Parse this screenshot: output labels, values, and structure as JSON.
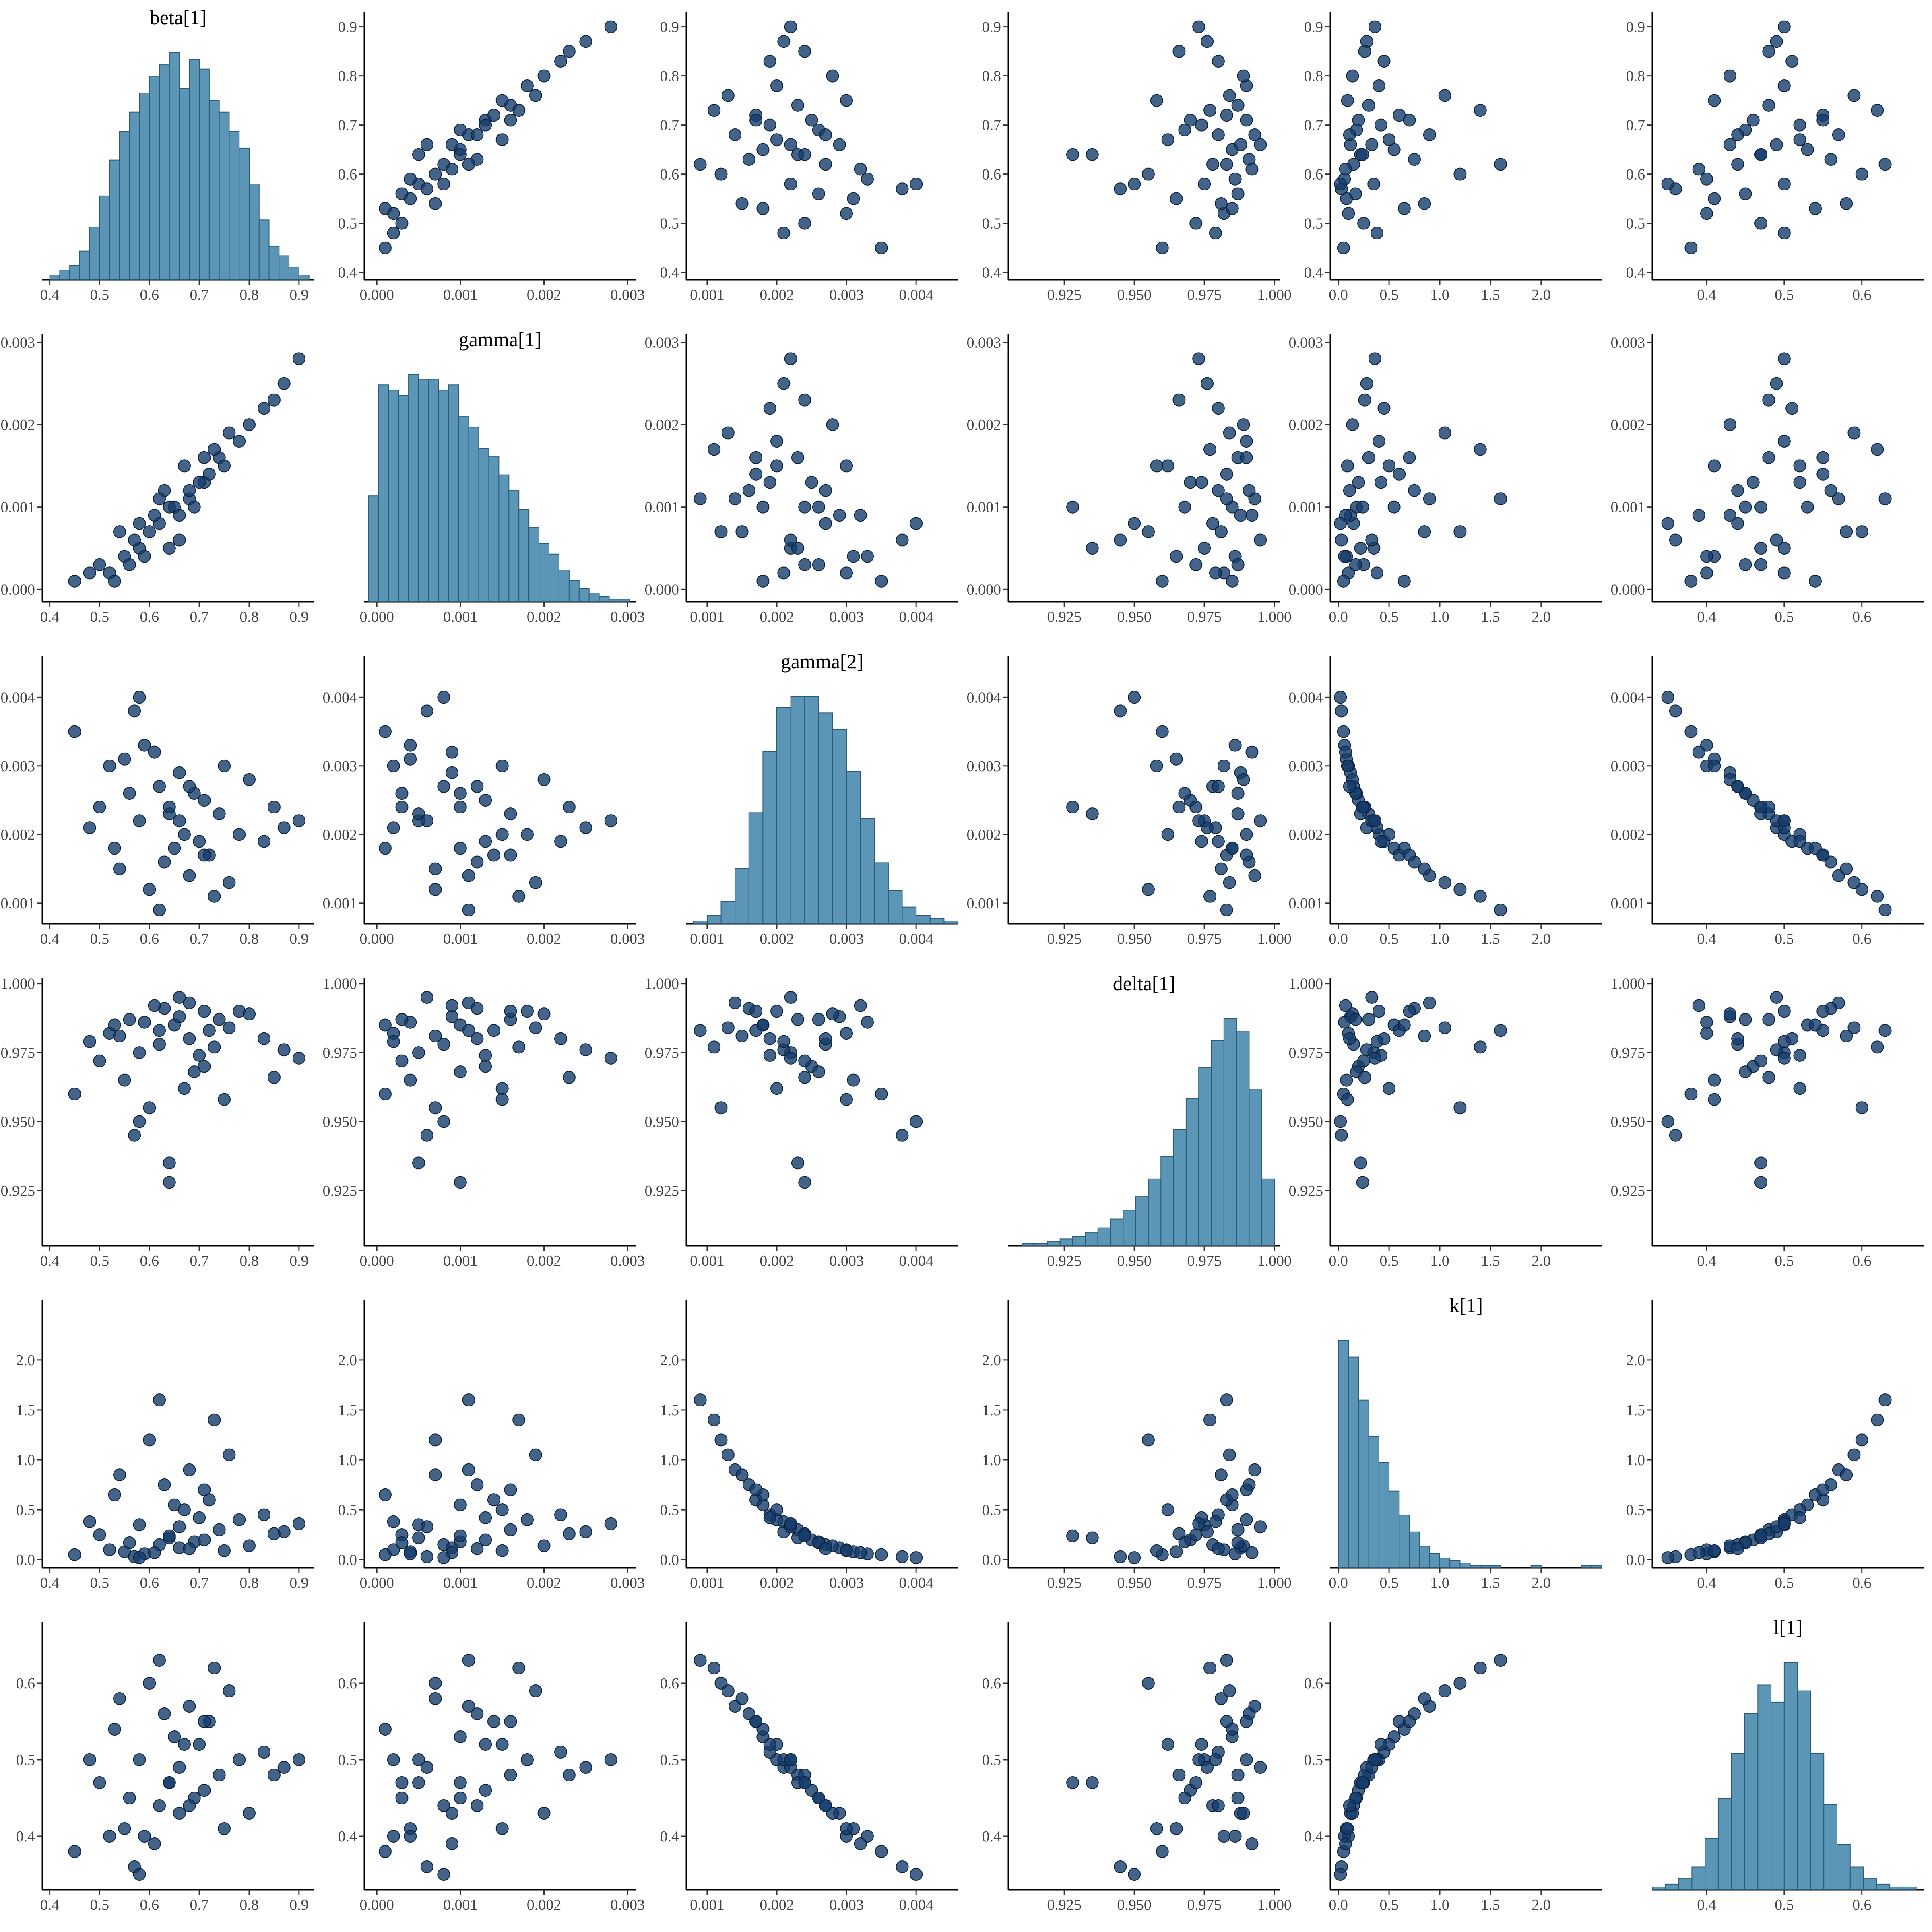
{
  "chart_data": {
    "type": "pairs",
    "point_color": "#153c6b",
    "point_stroke": "#0a2240",
    "hist_color": "#5b96b7",
    "hist_stroke": "#2c5a78",
    "variables": [
      {
        "name": "beta[1]",
        "lim": [
          0.385,
          0.93
        ],
        "ticks": [
          0.4,
          0.5,
          0.6,
          0.7,
          0.8,
          0.9
        ],
        "bins": [
          0.4,
          0.42,
          0.44,
          0.46,
          0.48,
          0.5,
          0.52,
          0.54,
          0.56,
          0.58,
          0.6,
          0.62,
          0.64,
          0.66,
          0.68,
          0.7,
          0.72,
          0.74,
          0.76,
          0.78,
          0.8,
          0.82,
          0.84,
          0.86,
          0.88,
          0.9,
          0.92
        ],
        "counts": [
          2,
          4,
          6,
          12,
          22,
          35,
          50,
          62,
          70,
          78,
          85,
          90,
          95,
          80,
          92,
          88,
          75,
          70,
          62,
          55,
          40,
          25,
          14,
          10,
          5,
          2
        ],
        "draws": [
          0.52,
          0.58,
          0.65,
          0.71,
          0.78,
          0.45,
          0.62,
          0.68,
          0.55,
          0.74,
          0.83,
          0.6,
          0.66,
          0.5,
          0.72,
          0.87,
          0.57,
          0.63,
          0.69,
          0.76,
          0.48,
          0.59,
          0.67,
          0.8,
          0.54,
          0.64,
          0.73,
          0.61,
          0.7,
          0.56,
          0.85,
          0.62,
          0.66,
          0.75,
          0.53,
          0.68,
          0.9,
          0.58,
          0.71,
          0.64
        ]
      },
      {
        "name": "gamma[1]",
        "lim": [
          -0.00015,
          0.0031
        ],
        "ticks": [
          {
            "value": 0,
            "label": "0.000"
          },
          0.001,
          0.002,
          0.003
        ],
        "bins": [
          -0.0001,
          2e-05,
          0.00014,
          0.00026,
          0.00038,
          0.0005,
          0.00062,
          0.00074,
          0.00086,
          0.00098,
          0.0011,
          0.00122,
          0.00134,
          0.00146,
          0.00158,
          0.0017,
          0.00182,
          0.00194,
          0.00206,
          0.00218,
          0.0023,
          0.00242,
          0.00254,
          0.00266,
          0.00278,
          0.0029,
          0.00302
        ],
        "counts": [
          40,
          82,
          80,
          78,
          86,
          84,
          84,
          80,
          82,
          70,
          66,
          58,
          55,
          48,
          42,
          35,
          28,
          22,
          18,
          12,
          8,
          5,
          3,
          2,
          1,
          1
        ],
        "draws": [
          0.0002,
          0.0005,
          0.001,
          0.0013,
          0.0018,
          0.0001,
          0.0008,
          0.0011,
          0.0004,
          0.0016,
          0.0022,
          0.0007,
          0.0009,
          0.0003,
          0.0014,
          0.0025,
          0.0006,
          0.0012,
          0.001,
          0.0019,
          0.0002,
          0.0004,
          0.0015,
          0.002,
          0.0007,
          0.0005,
          0.0017,
          0.0009,
          0.0013,
          0.0003,
          0.0023,
          0.0011,
          0.0006,
          0.0015,
          0.0001,
          0.0012,
          0.0028,
          0.0008,
          0.0016,
          0.001
        ]
      },
      {
        "name": "gamma[2]",
        "lim": [
          0.0007,
          0.0046
        ],
        "ticks": [
          0.001,
          0.002,
          0.003,
          0.004
        ],
        "bins": [
          0.0008,
          0.001,
          0.0012,
          0.0014,
          0.0016,
          0.0018,
          0.002,
          0.0022,
          0.0024,
          0.0026,
          0.0028,
          0.003,
          0.0032,
          0.0034,
          0.0036,
          0.0038,
          0.004,
          0.0042,
          0.0044,
          0.0046
        ],
        "counts": [
          1,
          3,
          8,
          20,
          40,
          62,
          78,
          82,
          82,
          76,
          70,
          55,
          38,
          22,
          12,
          6,
          3,
          2,
          1
        ],
        "draws": [
          0.003,
          0.0022,
          0.0018,
          0.0025,
          0.002,
          0.0035,
          0.0027,
          0.0014,
          0.0031,
          0.0023,
          0.0019,
          0.0012,
          0.0029,
          0.0024,
          0.0017,
          0.0021,
          0.0038,
          0.0016,
          0.0026,
          0.0013,
          0.0021,
          0.0033,
          0.002,
          0.0028,
          0.0015,
          0.0023,
          0.0011,
          0.0032,
          0.0019,
          0.0026,
          0.0024,
          0.0009,
          0.0022,
          0.003,
          0.0018,
          0.0027,
          0.0022,
          0.004,
          0.0017,
          0.0024
        ]
      },
      {
        "name": "delta[1]",
        "lim": [
          0.905,
          1.002
        ],
        "ticks": [
          0.925,
          {
            "value": 0.95,
            "label": "0.950"
          },
          0.975,
          {
            "value": 1,
            "label": "1.000"
          }
        ],
        "bins": [
          0.91,
          0.9145,
          0.919,
          0.9235,
          0.928,
          0.9325,
          0.937,
          0.9415,
          0.946,
          0.9505,
          0.955,
          0.9595,
          0.964,
          0.9685,
          0.973,
          0.9775,
          0.982,
          0.9865,
          0.991,
          0.9955,
          1.0
        ],
        "counts": [
          1,
          1,
          2,
          3,
          4,
          6,
          8,
          12,
          16,
          22,
          30,
          40,
          52,
          66,
          80,
          92,
          102,
          96,
          70,
          30
        ],
        "draws": [
          0.982,
          0.975,
          0.985,
          0.97,
          0.99,
          0.96,
          0.978,
          0.993,
          0.965,
          0.987,
          0.98,
          0.955,
          0.988,
          0.972,
          0.983,
          0.976,
          0.945,
          0.991,
          0.968,
          0.984,
          0.979,
          0.986,
          0.962,
          0.989,
          0.981,
          0.935,
          0.977,
          0.992,
          0.974,
          0.987,
          0.966,
          0.983,
          0.995,
          0.958,
          0.985,
          0.98,
          0.973,
          0.95,
          0.99,
          0.928
        ]
      },
      {
        "name": "k[1]",
        "lim": [
          -0.08,
          2.6
        ],
        "ticks": [
          {
            "value": 0,
            "label": "0.0"
          },
          0.5,
          {
            "value": 1,
            "label": "1.0"
          },
          1.5,
          {
            "value": 2,
            "label": "2.0"
          }
        ],
        "bins": [
          0,
          0.1,
          0.2,
          0.3,
          0.4,
          0.5,
          0.6,
          0.7,
          0.8,
          0.9,
          1.0,
          1.1,
          1.2,
          1.3,
          1.4,
          1.5,
          1.6,
          1.7,
          1.8,
          1.9,
          2.0,
          2.1,
          2.2,
          2.3,
          2.4,
          2.5,
          2.6
        ],
        "counts": [
          95,
          88,
          70,
          55,
          44,
          32,
          22,
          15,
          9,
          6,
          4,
          3,
          2,
          1,
          1,
          1,
          0,
          0,
          0,
          1,
          0,
          0,
          0,
          0,
          1,
          1
        ],
        "draws": [
          0.1,
          0.35,
          0.55,
          0.2,
          0.4,
          0.05,
          0.15,
          0.9,
          0.08,
          0.3,
          0.45,
          1.2,
          0.12,
          0.25,
          0.6,
          0.28,
          0.03,
          0.75,
          0.18,
          1.05,
          0.38,
          0.06,
          0.5,
          0.14,
          0.85,
          0.22,
          1.4,
          0.07,
          0.42,
          0.17,
          0.26,
          1.6,
          0.33,
          0.09,
          0.65,
          0.11,
          0.36,
          0.02,
          0.7,
          0.24
        ]
      },
      {
        "name": "l[1]",
        "lim": [
          0.33,
          0.68
        ],
        "ticks": [
          0.4,
          0.5,
          0.6
        ],
        "bins": [
          0.33,
          0.347,
          0.364,
          0.381,
          0.398,
          0.415,
          0.432,
          0.449,
          0.466,
          0.483,
          0.5,
          0.517,
          0.534,
          0.551,
          0.568,
          0.585,
          0.602,
          0.619,
          0.636,
          0.653,
          0.67
        ],
        "counts": [
          1,
          2,
          4,
          8,
          18,
          32,
          48,
          62,
          72,
          66,
          80,
          70,
          48,
          30,
          16,
          8,
          4,
          2,
          1,
          1
        ],
        "draws": [
          0.4,
          0.5,
          0.53,
          0.46,
          0.5,
          0.38,
          0.44,
          0.57,
          0.41,
          0.48,
          0.51,
          0.6,
          0.43,
          0.47,
          0.55,
          0.49,
          0.36,
          0.56,
          0.45,
          0.59,
          0.5,
          0.4,
          0.52,
          0.43,
          0.58,
          0.47,
          0.62,
          0.39,
          0.52,
          0.45,
          0.48,
          0.63,
          0.49,
          0.41,
          0.54,
          0.44,
          0.5,
          0.35,
          0.55,
          0.47
        ]
      }
    ]
  }
}
